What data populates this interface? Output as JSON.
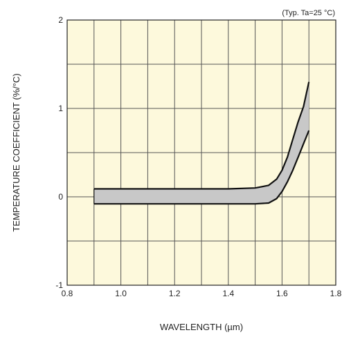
{
  "chart_data": {
    "type": "area",
    "annotation": "(Typ. Ta=25 °C)",
    "xlabel": "WAVELENGTH (µm)",
    "ylabel": "TEMPERATURE COEFFICIENT (%/°C)",
    "xlim": [
      0.8,
      1.8
    ],
    "ylim": [
      -1,
      2
    ],
    "x_ticks": [
      "0.8",
      "1.0",
      "1.2",
      "1.4",
      "1.6",
      "1.8"
    ],
    "y_ticks": [
      "-1",
      "0",
      "1",
      "2"
    ],
    "grid": true,
    "background_color": "#fdf9dc",
    "band_fill_color": "#c8c8c8",
    "line_color": "#111111",
    "series": [
      {
        "x": [
          0.9,
          1.0,
          1.2,
          1.4,
          1.5,
          1.55,
          1.58,
          1.6,
          1.62,
          1.64,
          1.66,
          1.68,
          1.7
        ],
        "y": [
          0.09,
          0.09,
          0.09,
          0.09,
          0.1,
          0.13,
          0.2,
          0.3,
          0.45,
          0.65,
          0.85,
          1.02,
          1.3
        ]
      },
      {
        "x": [
          0.9,
          1.0,
          1.2,
          1.4,
          1.5,
          1.55,
          1.58,
          1.6,
          1.62,
          1.64,
          1.66,
          1.68,
          1.7
        ],
        "y": [
          -0.08,
          -0.08,
          -0.08,
          -0.08,
          -0.08,
          -0.07,
          -0.02,
          0.06,
          0.17,
          0.3,
          0.45,
          0.6,
          0.75
        ]
      }
    ]
  }
}
